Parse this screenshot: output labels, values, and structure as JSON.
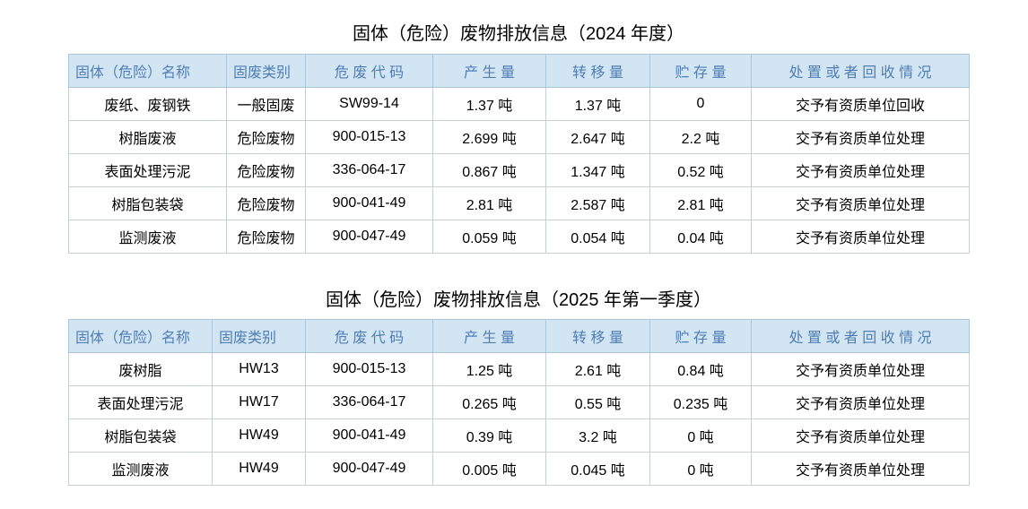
{
  "colors": {
    "header_bg": "#d2e5f2",
    "header_text": "#4f7db5",
    "header_border": "#aac4d8",
    "body_border": "#c9ced3",
    "title_text": "#000000"
  },
  "tables": [
    {
      "title": "固体（危险）废物排放信息（2024 年度）",
      "headers": [
        "固体（危险）名称",
        "固废类别",
        "危 废 代 码",
        "产 生 量",
        "转 移 量",
        "贮 存 量",
        "处 置 或 者 回 收 情 况"
      ],
      "rows": [
        [
          "废纸、废钢铁",
          "一般固废",
          "SW99-14",
          "1.37 吨",
          "1.37 吨",
          "0",
          "交予有资质单位回收"
        ],
        [
          "树脂废液",
          "危险废物",
          "900-015-13",
          "2.699 吨",
          "2.647 吨",
          "2.2 吨",
          "交予有资质单位处理"
        ],
        [
          "表面处理污泥",
          "危险废物",
          "336-064-17",
          "0.867 吨",
          "1.347 吨",
          "0.52 吨",
          "交予有资质单位处理"
        ],
        [
          "树脂包装袋",
          "危险废物",
          "900-041-49",
          "2.81 吨",
          "2.587 吨",
          "2.81 吨",
          "交予有资质单位处理"
        ],
        [
          "监测废液",
          "危险废物",
          "900-047-49",
          "0.059 吨",
          "0.054 吨",
          "0.04 吨",
          "交予有资质单位处理"
        ]
      ]
    },
    {
      "title": "固体（危险）废物排放信息（2025 年第一季度）",
      "headers": [
        "固体（危险）名称",
        "固废类别",
        "危 废 代 码",
        "产 生 量",
        "转 移 量",
        "贮 存 量",
        "处 置 或 者 回 收 情 况"
      ],
      "rows": [
        [
          "废树脂",
          "HW13",
          "900-015-13",
          "1.25 吨",
          "2.61 吨",
          "0.84 吨",
          "交予有资质单位处理"
        ],
        [
          "表面处理污泥",
          "HW17",
          "336-064-17",
          "0.265 吨",
          "0.55 吨",
          "0.235 吨",
          "交予有资质单位处理"
        ],
        [
          "树脂包装袋",
          "HW49",
          "900-041-49",
          "0.39 吨",
          "3.2 吨",
          "0 吨",
          "交予有资质单位处理"
        ],
        [
          "监测废液",
          "HW49",
          "900-047-49",
          "0.005 吨",
          "0.045 吨",
          "0 吨",
          "交予有资质单位处理"
        ]
      ]
    }
  ]
}
